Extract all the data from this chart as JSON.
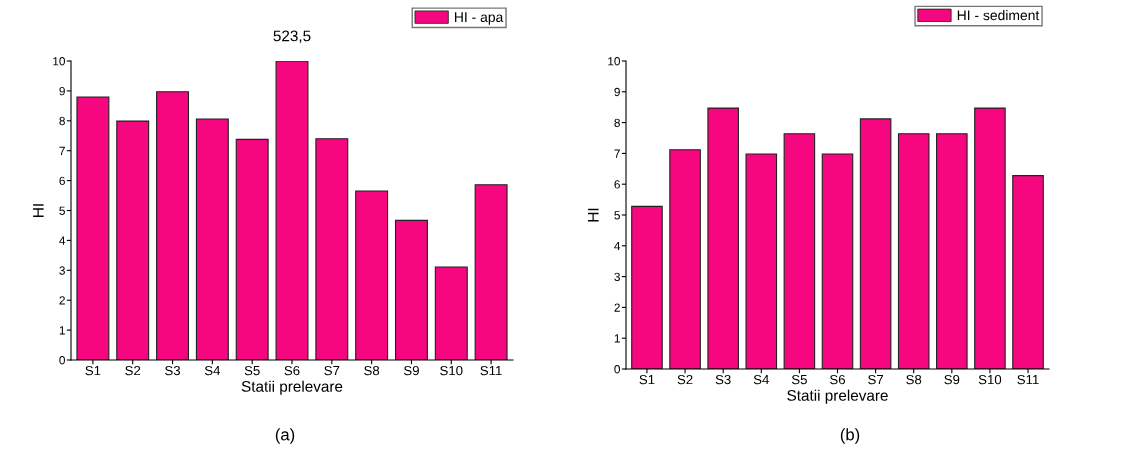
{
  "chart_data": [
    {
      "type": "bar",
      "xlabel": "Statii prelevare",
      "ylabel": "HI",
      "categories": [
        "S1",
        "S2",
        "S3",
        "S4",
        "S5",
        "S6",
        "S7",
        "S8",
        "S9",
        "S10",
        "S11"
      ],
      "series": [
        {
          "name": "HI - apa",
          "color": "#f7077f",
          "values": [
            8.79,
            7.99,
            8.97,
            8.06,
            7.38,
            10,
            7.4,
            5.65,
            4.67,
            3.11,
            5.86
          ]
        }
      ],
      "ylim": [
        0,
        10
      ],
      "yticks": [
        0,
        1,
        2,
        3,
        4,
        5,
        6,
        7,
        8,
        9,
        10
      ],
      "grid": false,
      "legend": "top right",
      "annotations": [
        {
          "text": "523,5",
          "x": "S6",
          "y": 10
        },
        "(a)"
      ]
    },
    {
      "type": "bar",
      "xlabel": "Statii prelevare",
      "ylabel": "HI",
      "categories": [
        "S1",
        "S2",
        "S3",
        "S4",
        "S5",
        "S6",
        "S7",
        "S8",
        "S9",
        "S10",
        "S11"
      ],
      "series": [
        {
          "name": "HI - sediment",
          "color": "#f7077f",
          "values": [
            5.28,
            7.12,
            8.47,
            6.98,
            7.64,
            6.98,
            8.12,
            7.64,
            7.64,
            8.47,
            6.28
          ]
        }
      ],
      "ylim": [
        0,
        10
      ],
      "yticks": [
        0,
        1,
        2,
        3,
        4,
        5,
        6,
        7,
        8,
        9,
        10
      ],
      "grid": false,
      "legend": "top right",
      "annotations": [
        "(b)"
      ]
    }
  ]
}
